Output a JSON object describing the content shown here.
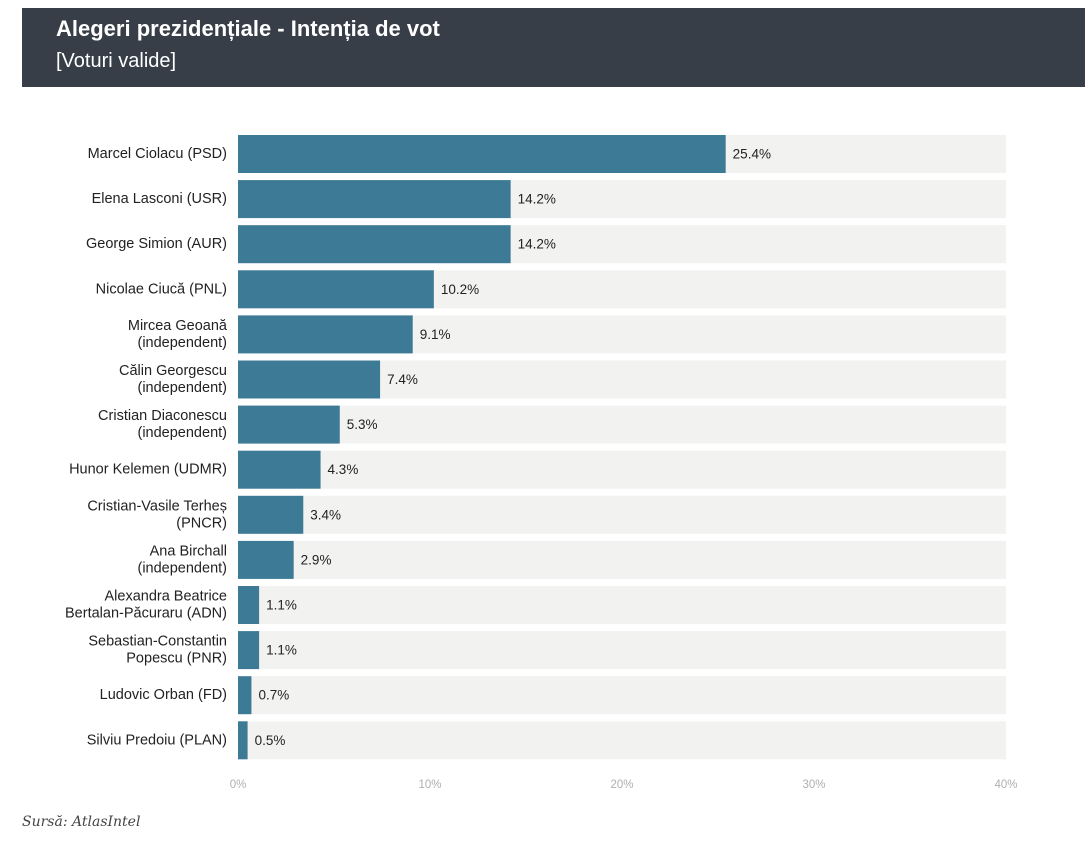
{
  "header": {
    "title": "Alegeri prezidențiale - Intenția de vot",
    "subtitle": "[Voturi valide]"
  },
  "source_text": "Sursă: AtlasIntel",
  "colors": {
    "bar": "#3d7a96",
    "track": "#f2f2f0",
    "header_bg": "#373e47"
  },
  "chart_data": {
    "type": "bar",
    "orientation": "horizontal",
    "title": "Alegeri prezidențiale - Intenția de vot",
    "subtitle": "[Voturi valide]",
    "xlabel": "",
    "ylabel": "",
    "xlim": [
      0,
      40
    ],
    "ticks": [
      0,
      10,
      20,
      30,
      40
    ],
    "tick_labels": [
      "0%",
      "10%",
      "20%",
      "30%",
      "40%"
    ],
    "categories": [
      [
        "Marcel Ciolacu (PSD)"
      ],
      [
        "Elena Lasconi (USR)"
      ],
      [
        "George Simion (AUR)"
      ],
      [
        "Nicolae Ciucă (PNL)"
      ],
      [
        "Mircea Geoană",
        "(independent)"
      ],
      [
        "Călin Georgescu",
        "(independent)"
      ],
      [
        "Cristian Diaconescu",
        "(independent)"
      ],
      [
        "Hunor Kelemen (UDMR)"
      ],
      [
        "Cristian-Vasile Terheș",
        "(PNCR)"
      ],
      [
        "Ana Birchall",
        "(independent)"
      ],
      [
        "Alexandra Beatrice",
        "Bertalan-Păcuraru (ADN)"
      ],
      [
        "Sebastian-Constantin",
        "Popescu (PNR)"
      ],
      [
        "Ludovic Orban (FD)"
      ],
      [
        "Silviu Predoiu (PLAN)"
      ]
    ],
    "values": [
      25.4,
      14.2,
      14.2,
      10.2,
      9.1,
      7.4,
      5.3,
      4.3,
      3.4,
      2.9,
      1.1,
      1.1,
      0.7,
      0.5
    ],
    "value_labels": [
      "25.4%",
      "14.2%",
      "14.2%",
      "10.2%",
      "9.1%",
      "7.4%",
      "5.3%",
      "4.3%",
      "3.4%",
      "2.9%",
      "1.1%",
      "1.1%",
      "0.7%",
      "0.5%"
    ]
  }
}
